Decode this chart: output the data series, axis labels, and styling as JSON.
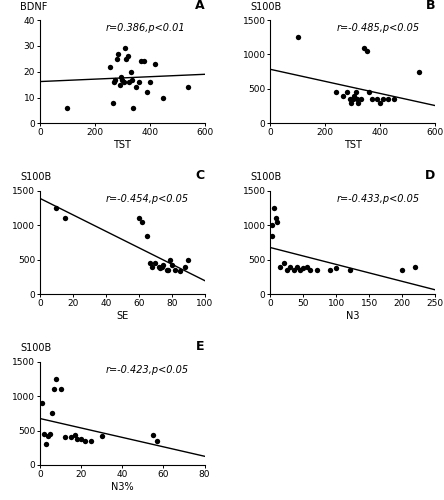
{
  "panel_A": {
    "label": "A",
    "xlabel": "TST",
    "ylabel": "BDNF",
    "corr_text": "r=0.386,p<0.01",
    "xlim": [
      0,
      600
    ],
    "ylim": [
      0,
      40
    ],
    "xticks": [
      0,
      200,
      400,
      600
    ],
    "yticks": [
      0,
      10,
      20,
      30,
      40
    ],
    "x": [
      100,
      255,
      265,
      270,
      275,
      280,
      285,
      290,
      295,
      300,
      305,
      310,
      315,
      320,
      325,
      330,
      335,
      340,
      350,
      360,
      370,
      380,
      390,
      400,
      420,
      450,
      540
    ],
    "y": [
      6,
      22,
      8,
      16,
      17,
      25,
      27,
      15,
      18,
      17,
      16,
      29,
      25,
      26,
      16,
      20,
      17,
      6,
      14,
      16,
      24,
      24,
      12,
      16,
      23,
      10,
      14
    ]
  },
  "panel_B": {
    "label": "B",
    "xlabel": "TST",
    "ylabel": "S100B",
    "corr_text": "r=-0.485,p<0.05",
    "xlim": [
      0,
      600
    ],
    "ylim": [
      0,
      1500
    ],
    "xticks": [
      0,
      200,
      400,
      600
    ],
    "yticks": [
      0,
      500,
      1000,
      1500
    ],
    "x": [
      100,
      240,
      265,
      280,
      290,
      295,
      300,
      305,
      310,
      315,
      320,
      330,
      340,
      350,
      360,
      370,
      390,
      400,
      410,
      430,
      450,
      540
    ],
    "y": [
      1250,
      450,
      400,
      450,
      350,
      300,
      350,
      400,
      450,
      350,
      300,
      350,
      1100,
      1050,
      450,
      350,
      350,
      300,
      350,
      350,
      350,
      750
    ]
  },
  "panel_C": {
    "label": "C",
    "xlabel": "SE",
    "ylabel": "S100B",
    "corr_text": "r=-0.454,p<0.05",
    "xlim": [
      0,
      100
    ],
    "ylim": [
      0,
      1500
    ],
    "xticks": [
      0,
      20,
      40,
      60,
      80,
      100
    ],
    "yticks": [
      0,
      500,
      1000,
      1500
    ],
    "x": [
      10,
      15,
      60,
      62,
      65,
      67,
      68,
      70,
      72,
      73,
      74,
      75,
      77,
      78,
      79,
      80,
      82,
      85,
      88,
      90
    ],
    "y": [
      1250,
      1100,
      1100,
      1050,
      850,
      450,
      400,
      450,
      400,
      380,
      400,
      430,
      350,
      350,
      500,
      420,
      350,
      340,
      400,
      500
    ]
  },
  "panel_D": {
    "label": "D",
    "xlabel": "N3",
    "ylabel": "S100B",
    "corr_text": "r=-0.433,p<0.05",
    "xlim": [
      0,
      250
    ],
    "ylim": [
      0,
      1500
    ],
    "xticks": [
      0,
      50,
      100,
      150,
      200,
      250
    ],
    "yticks": [
      0,
      500,
      1000,
      1500
    ],
    "x": [
      2,
      3,
      5,
      8,
      10,
      15,
      20,
      25,
      30,
      35,
      40,
      45,
      50,
      55,
      60,
      70,
      90,
      100,
      120,
      200,
      220
    ],
    "y": [
      1000,
      850,
      1250,
      1100,
      1050,
      400,
      450,
      350,
      400,
      350,
      400,
      350,
      380,
      400,
      350,
      350,
      350,
      380,
      350,
      350,
      400
    ]
  },
  "panel_E": {
    "label": "E",
    "xlabel": "N3%",
    "ylabel": "S100B",
    "corr_text": "r=-0.423,p<0.05",
    "xlim": [
      0,
      80
    ],
    "ylim": [
      0,
      1500
    ],
    "xticks": [
      0,
      20,
      40,
      60,
      80
    ],
    "yticks": [
      0,
      500,
      1000,
      1500
    ],
    "x": [
      1,
      2,
      3,
      4,
      5,
      6,
      7,
      8,
      10,
      12,
      15,
      17,
      18,
      20,
      22,
      25,
      30,
      55,
      57
    ],
    "y": [
      900,
      450,
      300,
      420,
      450,
      750,
      1100,
      1250,
      1100,
      400,
      410,
      440,
      380,
      380,
      350,
      350,
      420,
      430,
      350
    ]
  },
  "dot_size": 15,
  "dot_color": "black",
  "line_color": "black",
  "line_width": 1.0,
  "font_size_label": 7,
  "font_size_corr": 7,
  "font_size_panel": 9,
  "font_size_tick": 6.5,
  "font_size_ylabel": 7,
  "bg_color": "white"
}
